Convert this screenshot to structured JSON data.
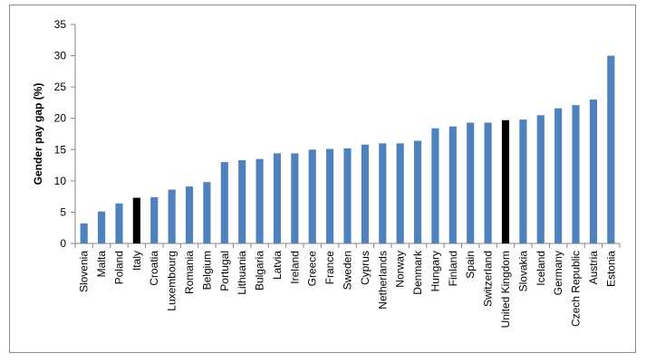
{
  "chart_data": {
    "type": "bar",
    "ylabel": "Gender pay gap (%)",
    "xlabel": "",
    "ylim": [
      0,
      35
    ],
    "yticks": [
      0,
      5,
      10,
      15,
      20,
      25,
      30,
      35
    ],
    "grid": false,
    "legend": "none",
    "categories": [
      "Slovenia",
      "Malta",
      "Poland",
      "Italy",
      "Croatia",
      "Luxembourg",
      "Romania",
      "Belgium",
      "Portugal",
      "Lithuania",
      "Bulgaria",
      "Latvia",
      "Ireland",
      "Greece",
      "France",
      "Sweden",
      "Cyprus",
      "Netherlands",
      "Norway",
      "Denmark",
      "Hungary",
      "Finland",
      "Spain",
      "Switzerland",
      "United Kingdom",
      "Slovakia",
      "Iceland",
      "Germany",
      "Czech Republic",
      "Austria",
      "Estonia"
    ],
    "values": [
      3.2,
      5.1,
      6.4,
      7.3,
      7.4,
      8.6,
      9.1,
      9.8,
      13.0,
      13.3,
      13.5,
      14.4,
      14.4,
      15.0,
      15.1,
      15.2,
      15.8,
      16.0,
      16.0,
      16.4,
      18.4,
      18.7,
      19.3,
      19.3,
      19.7,
      19.8,
      20.5,
      21.6,
      22.1,
      23.0,
      30.0
    ],
    "highlight": [
      "Italy",
      "United Kingdom"
    ],
    "colors": {
      "bar": "#4f81bd",
      "highlight": "#000000",
      "axis": "#868686"
    }
  }
}
